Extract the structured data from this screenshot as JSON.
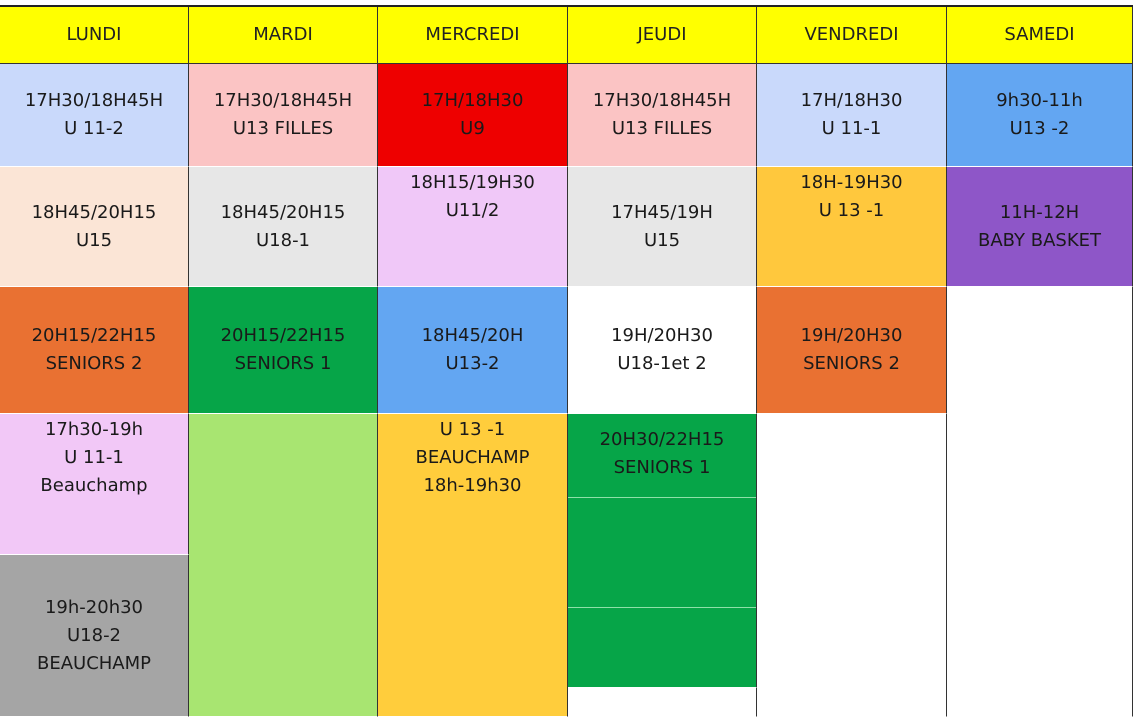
{
  "days": [
    "LUNDI",
    "MARDI",
    "MERCREDI",
    "JEUDI",
    "VENDREDI",
    "SAMEDI"
  ],
  "colors": {
    "header": "#ffff00"
  },
  "columns": [
    {
      "cells": [
        {
          "lines": [
            "17H30/18H45H",
            "U 11-2"
          ],
          "color": "#c9d9fb"
        },
        {
          "lines": [
            "18H45/20H15",
            "U15"
          ],
          "color": "#fbe5d6"
        },
        {
          "lines": [
            "20H15/22H15",
            "SENIORS 2"
          ],
          "color": "#e97132"
        },
        {
          "lines": [
            "17h30-19h",
            "U 11-1",
            "Beauchamp"
          ],
          "color": "#f2c8f7"
        },
        {
          "lines": [
            "19h-20h30",
            "U18-2",
            "BEAUCHAMP"
          ],
          "color": "#a5a5a5"
        }
      ]
    },
    {
      "cells": [
        {
          "lines": [
            "17H30/18H45H",
            "U13 FILLES"
          ],
          "color": "#fbc4c4"
        },
        {
          "lines": [
            "18H45/20H15",
            "U18-1"
          ],
          "color": "#e7e7e7"
        },
        {
          "lines": [
            "20H15/22H15",
            "SENIORS 1"
          ],
          "color": "#06a548"
        },
        {
          "lines": [],
          "color": "#a8e571"
        }
      ]
    },
    {
      "cells": [
        {
          "lines": [
            "17H/18H30",
            "U9"
          ],
          "color": "#ee0000"
        },
        {
          "lines": [
            "18H15/19H30",
            "U11/2"
          ],
          "color": "#f0c8f8"
        },
        {
          "lines": [
            "18H45/20H",
            "U13-2"
          ],
          "color": "#63a6f2"
        },
        {
          "lines": [
            "U 13 -1",
            "BEAUCHAMP",
            "18h-19h30"
          ],
          "color": "#ffcd3c"
        }
      ]
    },
    {
      "cells": [
        {
          "lines": [
            "17H30/18H45H",
            "U13 FILLES"
          ],
          "color": "#fbc4c4"
        },
        {
          "lines": [
            "17H45/19H",
            "U15"
          ],
          "color": "#e7e7e7"
        },
        {
          "lines": [
            "19H/20H30",
            "U18-1et 2"
          ],
          "color": "#ffffff"
        },
        {
          "lines": [
            "20H30/22H15",
            "SENIORS 1"
          ],
          "color": "#06a548"
        },
        {
          "lines": [],
          "color": "#ffffff"
        }
      ]
    },
    {
      "cells": [
        {
          "lines": [
            "17H/18H30",
            "U 11-1"
          ],
          "color": "#c9d9fb"
        },
        {
          "lines": [
            "18H-19H30",
            "U 13 -1"
          ],
          "color": "#ffc83d"
        },
        {
          "lines": [
            "19H/20H30",
            "SENIORS 2"
          ],
          "color": "#e97132"
        },
        {
          "lines": [],
          "color": "#ffffff"
        }
      ]
    },
    {
      "cells": [
        {
          "lines": [
            "9h30-11h",
            "U13 -2"
          ],
          "color": "#63a6f2"
        },
        {
          "lines": [
            "11H-12H",
            "BABY BASKET"
          ],
          "color": "#8e56c8"
        },
        {
          "lines": [],
          "color": "#ffffff"
        }
      ]
    }
  ]
}
